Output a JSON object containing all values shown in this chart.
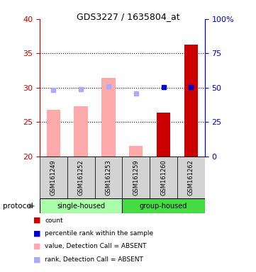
{
  "title": "GDS3227 / 1635804_at",
  "samples": [
    "GSM161249",
    "GSM161252",
    "GSM161253",
    "GSM161259",
    "GSM161260",
    "GSM161262"
  ],
  "count_values": [
    null,
    null,
    null,
    null,
    26.4,
    36.3
  ],
  "count_color": "#cc0000",
  "value_absent": [
    26.8,
    27.3,
    31.4,
    21.5,
    null,
    null
  ],
  "value_absent_color": "#ffaaaa",
  "rank_absent": [
    29.7,
    29.8,
    30.2,
    29.2,
    null,
    null
  ],
  "rank_absent_color": "#aaaaff",
  "rank_present": [
    null,
    null,
    null,
    null,
    30.1,
    30.1
  ],
  "rank_present_color": "#0000cc",
  "ylim_left": [
    20,
    40
  ],
  "ylim_right": [
    0,
    100
  ],
  "yticks_left": [
    20,
    25,
    30,
    35,
    40
  ],
  "yticks_right": [
    0,
    25,
    50,
    75,
    100
  ],
  "ytick_labels_right": [
    "0",
    "25",
    "50",
    "75",
    "100%"
  ],
  "left_axis_color": "#cc0000",
  "right_axis_color": "#0000cc",
  "bar_width": 0.5,
  "single_housed_color": "#aaffaa",
  "group_housed_color": "#44dd44",
  "label_bg_color": "#d3d3d3",
  "legend_items": [
    {
      "label": "count",
      "color": "#cc0000"
    },
    {
      "label": "percentile rank within the sample",
      "color": "#0000cc"
    },
    {
      "label": "value, Detection Call = ABSENT",
      "color": "#ffaaaa"
    },
    {
      "label": "rank, Detection Call = ABSENT",
      "color": "#aaaaff"
    }
  ],
  "protocol_label": "protocol",
  "background_color": "#ffffff",
  "dotted_levels": [
    25,
    30,
    35
  ]
}
